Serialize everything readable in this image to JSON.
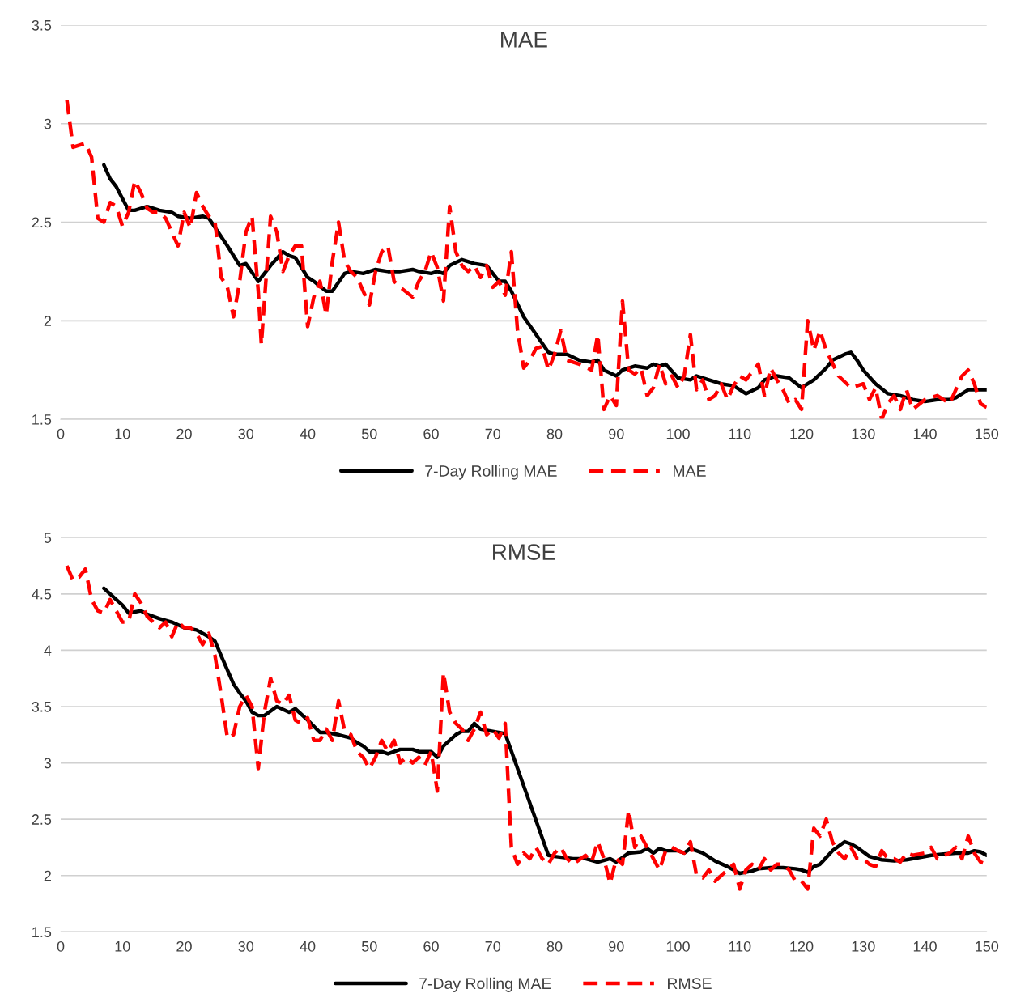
{
  "chart_data": [
    {
      "type": "line",
      "title": "MAE",
      "xlim": [
        0,
        150
      ],
      "xticks": [
        0,
        10,
        20,
        30,
        40,
        50,
        60,
        70,
        80,
        90,
        100,
        110,
        120,
        130,
        140,
        150
      ],
      "ylim": [
        1.5,
        3.5
      ],
      "yticks": [
        1.5,
        2,
        2.5,
        3,
        3.5
      ],
      "grid": "y",
      "legend": "bottom",
      "marker": "none",
      "series": [
        {
          "name": "7-Day Rolling MAE",
          "color": "#000000",
          "line_style": "solid",
          "x": [
            7,
            8,
            9,
            11,
            12,
            14,
            16,
            18,
            19,
            21,
            23,
            24,
            27,
            29,
            30,
            32,
            34,
            36,
            37,
            38,
            40,
            41,
            43,
            44,
            46,
            47,
            49,
            51,
            53,
            55,
            57,
            58,
            60,
            61,
            62,
            63,
            65,
            67,
            69,
            70,
            71,
            72,
            73,
            75,
            77,
            79,
            80,
            82,
            84,
            86,
            87,
            88,
            90,
            91,
            93,
            95,
            96,
            97,
            98,
            100,
            102,
            103,
            105,
            107,
            109,
            111,
            113,
            114,
            116,
            118,
            120,
            121,
            122,
            124,
            125,
            127,
            128,
            129,
            130,
            132,
            134,
            136,
            138,
            140,
            142,
            144,
            145,
            147,
            148,
            150
          ],
          "values": [
            2.79,
            2.72,
            2.68,
            2.56,
            2.56,
            2.58,
            2.56,
            2.55,
            2.53,
            2.52,
            2.53,
            2.52,
            2.38,
            2.28,
            2.29,
            2.2,
            2.28,
            2.35,
            2.33,
            2.32,
            2.22,
            2.2,
            2.15,
            2.15,
            2.24,
            2.25,
            2.24,
            2.26,
            2.25,
            2.25,
            2.26,
            2.25,
            2.24,
            2.25,
            2.24,
            2.28,
            2.31,
            2.29,
            2.28,
            2.24,
            2.2,
            2.2,
            2.15,
            2.02,
            1.93,
            1.84,
            1.83,
            1.83,
            1.8,
            1.79,
            1.8,
            1.75,
            1.72,
            1.75,
            1.77,
            1.76,
            1.78,
            1.77,
            1.78,
            1.71,
            1.7,
            1.72,
            1.7,
            1.68,
            1.67,
            1.63,
            1.66,
            1.7,
            1.72,
            1.71,
            1.66,
            1.68,
            1.7,
            1.76,
            1.8,
            1.83,
            1.84,
            1.8,
            1.75,
            1.68,
            1.63,
            1.62,
            1.6,
            1.59,
            1.6,
            1.6,
            1.61,
            1.65,
            1.65,
            1.65
          ]
        },
        {
          "name": "MAE",
          "color": "#ff0000",
          "line_style": "dashed",
          "x": [
            1,
            2,
            4,
            5,
            6,
            7,
            8,
            9,
            10,
            11,
            12,
            13,
            14,
            15,
            16,
            17,
            18,
            19,
            20,
            21,
            22,
            23,
            24,
            25,
            26,
            27,
            28,
            29,
            30,
            31,
            32,
            32.5,
            33,
            34,
            35,
            36,
            37,
            38,
            39,
            40,
            41,
            42,
            43,
            44,
            45,
            46,
            47,
            48,
            49,
            50,
            51,
            52,
            53,
            54,
            55,
            57,
            58,
            59,
            60,
            61,
            62,
            63,
            64,
            65,
            66,
            67,
            68,
            69,
            70,
            71,
            72,
            73,
            74,
            75,
            76,
            77,
            78,
            79,
            80,
            81,
            82,
            84,
            86,
            87,
            88,
            89,
            90,
            91,
            92,
            93,
            94,
            95,
            96,
            97,
            98,
            99,
            100,
            101,
            102,
            103,
            104,
            105,
            106,
            107,
            108,
            109,
            110,
            111,
            113,
            114,
            115,
            116,
            117,
            118,
            119,
            120,
            121,
            122,
            123,
            124,
            126,
            128,
            130,
            131,
            132,
            133,
            134,
            135,
            136,
            137,
            138,
            140,
            142,
            144,
            146,
            147,
            148,
            149,
            150
          ],
          "values": [
            3.12,
            2.88,
            2.9,
            2.83,
            2.52,
            2.5,
            2.6,
            2.58,
            2.48,
            2.55,
            2.71,
            2.65,
            2.57,
            2.55,
            2.55,
            2.52,
            2.45,
            2.38,
            2.55,
            2.47,
            2.65,
            2.58,
            2.53,
            2.5,
            2.22,
            2.17,
            2.02,
            2.2,
            2.45,
            2.53,
            2.15,
            1.88,
            2.1,
            2.53,
            2.45,
            2.25,
            2.33,
            2.38,
            2.38,
            1.97,
            2.12,
            2.2,
            2.03,
            2.3,
            2.5,
            2.3,
            2.25,
            2.22,
            2.15,
            2.08,
            2.25,
            2.35,
            2.38,
            2.2,
            2.17,
            2.12,
            2.2,
            2.25,
            2.35,
            2.27,
            2.1,
            2.58,
            2.35,
            2.28,
            2.25,
            2.28,
            2.22,
            2.28,
            2.17,
            2.2,
            2.13,
            2.35,
            1.95,
            1.76,
            1.8,
            1.86,
            1.87,
            1.75,
            1.83,
            1.95,
            1.8,
            1.78,
            1.75,
            1.93,
            1.55,
            1.62,
            1.57,
            2.1,
            1.75,
            1.73,
            1.76,
            1.62,
            1.66,
            1.78,
            1.68,
            1.72,
            1.66,
            1.72,
            1.93,
            1.65,
            1.7,
            1.6,
            1.62,
            1.68,
            1.6,
            1.67,
            1.72,
            1.7,
            1.78,
            1.62,
            1.76,
            1.7,
            1.65,
            1.58,
            1.6,
            1.55,
            2.0,
            1.85,
            1.95,
            1.85,
            1.72,
            1.66,
            1.68,
            1.6,
            1.66,
            1.5,
            1.58,
            1.62,
            1.55,
            1.65,
            1.55,
            1.6,
            1.62,
            1.58,
            1.72,
            1.75,
            1.68,
            1.58,
            1.56
          ]
        }
      ]
    },
    {
      "type": "line",
      "title": "RMSE",
      "xlim": [
        0,
        150
      ],
      "xticks": [
        0,
        10,
        20,
        30,
        40,
        50,
        60,
        70,
        80,
        90,
        100,
        110,
        120,
        130,
        140,
        150
      ],
      "ylim": [
        1.5,
        5
      ],
      "yticks": [
        1.5,
        2,
        2.5,
        3,
        3.5,
        4,
        4.5,
        5
      ],
      "grid": "y",
      "legend": "bottom",
      "marker": "none",
      "series": [
        {
          "name": "7-Day Rolling MAE",
          "color": "#000000",
          "line_style": "solid",
          "x": [
            7,
            8,
            10,
            11,
            13,
            14,
            16,
            18,
            20,
            22,
            24,
            25,
            26,
            28,
            29,
            30,
            31,
            32,
            33,
            35,
            37,
            38,
            40,
            42,
            43,
            45,
            47,
            48,
            49,
            50,
            52,
            53,
            55,
            57,
            58,
            60,
            61,
            62,
            64,
            65,
            66,
            67,
            68,
            70,
            72,
            79,
            80,
            83,
            85,
            87,
            89,
            90,
            92,
            94,
            95,
            96,
            97,
            98,
            100,
            101,
            102,
            104,
            106,
            108,
            110,
            112,
            113,
            115,
            117,
            119,
            120,
            121,
            122,
            123,
            125,
            126,
            127,
            128,
            129,
            131,
            133,
            135,
            137,
            139,
            141,
            143,
            145,
            147,
            148,
            149,
            150
          ],
          "values": [
            4.55,
            4.5,
            4.4,
            4.33,
            4.35,
            4.32,
            4.28,
            4.25,
            4.2,
            4.18,
            4.12,
            4.08,
            3.95,
            3.7,
            3.62,
            3.55,
            3.45,
            3.42,
            3.42,
            3.5,
            3.45,
            3.48,
            3.38,
            3.27,
            3.27,
            3.25,
            3.22,
            3.18,
            3.15,
            3.1,
            3.1,
            3.08,
            3.12,
            3.12,
            3.1,
            3.1,
            3.05,
            3.15,
            3.25,
            3.28,
            3.28,
            3.35,
            3.3,
            3.28,
            3.26,
            2.18,
            2.17,
            2.15,
            2.15,
            2.12,
            2.15,
            2.12,
            2.2,
            2.21,
            2.24,
            2.2,
            2.24,
            2.22,
            2.22,
            2.2,
            2.24,
            2.2,
            2.13,
            2.08,
            2.02,
            2.04,
            2.06,
            2.07,
            2.07,
            2.06,
            2.05,
            2.03,
            2.08,
            2.1,
            2.22,
            2.26,
            2.3,
            2.28,
            2.25,
            2.17,
            2.14,
            2.13,
            2.14,
            2.16,
            2.18,
            2.19,
            2.2,
            2.2,
            2.22,
            2.21,
            2.18
          ]
        },
        {
          "name": "RMSE",
          "color": "#ff0000",
          "line_style": "dashed",
          "x": [
            1,
            2,
            3,
            4,
            5,
            6,
            7,
            8,
            9,
            10,
            11,
            12,
            13,
            14,
            15,
            16,
            17,
            18,
            19,
            20,
            21,
            22,
            23,
            24,
            25,
            26,
            27,
            28,
            29,
            30,
            31,
            32,
            33,
            34,
            35,
            36,
            37,
            38,
            39,
            40,
            41,
            42,
            43,
            44,
            45,
            46,
            47,
            48,
            49,
            50,
            51,
            52,
            53,
            54,
            55,
            56,
            57,
            58,
            59,
            60,
            61,
            62,
            63,
            64,
            65,
            66,
            67,
            68,
            69,
            70,
            71,
            72,
            73,
            74,
            75,
            76,
            77,
            78,
            79,
            80,
            81,
            82,
            83,
            85,
            86,
            87,
            88,
            89,
            90,
            91,
            92,
            93,
            94,
            95,
            96,
            97,
            98,
            99,
            100,
            101,
            102,
            103,
            104,
            105,
            106,
            107,
            108,
            109,
            110,
            111,
            112,
            113,
            114,
            115,
            116,
            117,
            118,
            119,
            120,
            121,
            122,
            123,
            124,
            125,
            126,
            127,
            128,
            129,
            130,
            131,
            132,
            133,
            134,
            135,
            136,
            137,
            138,
            140,
            141,
            142,
            144,
            145,
            146,
            147,
            148,
            149,
            150
          ],
          "values": [
            4.75,
            4.62,
            4.65,
            4.72,
            4.45,
            4.35,
            4.33,
            4.45,
            4.35,
            4.25,
            4.25,
            4.5,
            4.42,
            4.3,
            4.25,
            4.2,
            4.25,
            4.12,
            4.25,
            4.2,
            4.2,
            4.15,
            4.05,
            4.15,
            3.95,
            3.6,
            3.22,
            3.25,
            3.5,
            3.6,
            3.5,
            2.95,
            3.45,
            3.75,
            3.55,
            3.52,
            3.6,
            3.38,
            3.35,
            3.4,
            3.2,
            3.2,
            3.3,
            3.2,
            3.55,
            3.28,
            3.25,
            3.1,
            3.05,
            2.95,
            3.05,
            3.2,
            3.1,
            3.2,
            3.0,
            3.05,
            3.0,
            3.05,
            2.98,
            3.1,
            2.75,
            3.8,
            3.45,
            3.35,
            3.3,
            3.2,
            3.3,
            3.45,
            3.25,
            3.3,
            3.22,
            3.35,
            2.25,
            2.1,
            2.2,
            2.15,
            2.25,
            2.15,
            2.1,
            2.2,
            2.25,
            2.15,
            2.1,
            2.18,
            2.12,
            2.3,
            2.15,
            1.93,
            2.15,
            2.1,
            2.58,
            2.25,
            2.35,
            2.25,
            2.15,
            2.05,
            2.22,
            2.25,
            2.22,
            2.2,
            2.3,
            2.0,
            1.98,
            2.05,
            1.95,
            2.0,
            2.05,
            2.1,
            1.88,
            2.05,
            2.1,
            2.05,
            2.15,
            2.05,
            2.1,
            2.1,
            2.05,
            1.95,
            1.95,
            1.88,
            2.42,
            2.35,
            2.5,
            2.3,
            2.2,
            2.15,
            2.25,
            2.15,
            2.15,
            2.1,
            2.08,
            2.22,
            2.15,
            2.15,
            2.12,
            2.2,
            2.18,
            2.2,
            2.25,
            2.15,
            2.2,
            2.25,
            2.15,
            2.35,
            2.2,
            2.12,
            2.1
          ]
        }
      ]
    }
  ]
}
